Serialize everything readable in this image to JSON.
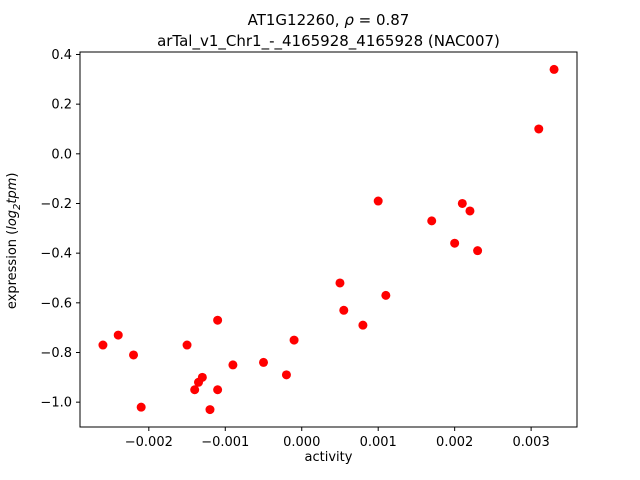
{
  "chart_data": {
    "type": "scatter",
    "title_line1": "AT1G12260, ρ = 0.87",
    "title_line1_parts": {
      "prefix": "AT1G12260, ",
      "rho": "ρ",
      "suffix": " = 0.87"
    },
    "title_line2": "arTal_v1_Chr1_-_4165928_4165928 (NAC007)",
    "xlabel": "activity",
    "ylabel_parts": {
      "prefix": "expression (",
      "log": "log",
      "sub": "2",
      "tpm": "tpm",
      "suffix": ")"
    },
    "marker_color": "#ff0000",
    "frame_color": "#000000",
    "xlim": [
      -0.0029,
      0.0036
    ],
    "ylim": [
      -1.1,
      0.41
    ],
    "xticks": [
      -0.002,
      -0.001,
      0.0,
      0.001,
      0.002,
      0.003
    ],
    "yticks": [
      -1.0,
      -0.8,
      -0.6,
      -0.4,
      -0.2,
      0.0,
      0.2,
      0.4
    ],
    "legend": "none",
    "grid": false,
    "points": [
      [
        -0.0026,
        -0.77
      ],
      [
        -0.0024,
        -0.73
      ],
      [
        -0.0022,
        -0.81
      ],
      [
        -0.0021,
        -1.02
      ],
      [
        -0.0015,
        -0.77
      ],
      [
        -0.0014,
        -0.95
      ],
      [
        -0.00135,
        -0.92
      ],
      [
        -0.0013,
        -0.9
      ],
      [
        -0.0012,
        -1.03
      ],
      [
        -0.0011,
        -0.67
      ],
      [
        -0.0011,
        -0.95
      ],
      [
        -0.0009,
        -0.85
      ],
      [
        -0.0005,
        -0.84
      ],
      [
        -0.0002,
        -0.89
      ],
      [
        -0.0001,
        -0.75
      ],
      [
        0.0005,
        -0.52
      ],
      [
        0.00055,
        -0.63
      ],
      [
        0.0008,
        -0.69
      ],
      [
        0.001,
        -0.19
      ],
      [
        0.0011,
        -0.57
      ],
      [
        0.0017,
        -0.27
      ],
      [
        0.002,
        -0.36
      ],
      [
        0.0021,
        -0.2
      ],
      [
        0.0022,
        -0.23
      ],
      [
        0.0023,
        -0.39
      ],
      [
        0.0031,
        0.1
      ],
      [
        0.0033,
        0.34
      ]
    ]
  }
}
